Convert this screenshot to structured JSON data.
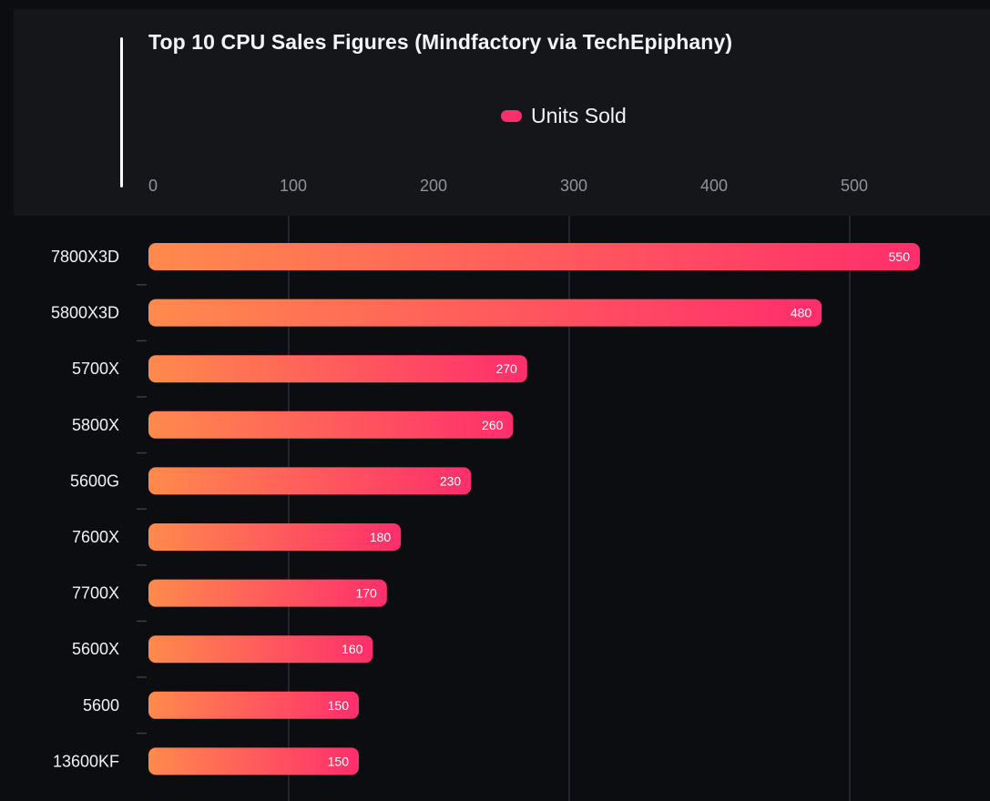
{
  "chart_data": {
    "type": "bar",
    "orientation": "horizontal",
    "title": "Top 10 CPU Sales Figures (Mindfactory via TechEpiphany)",
    "legend": {
      "position": "top-center",
      "entries": [
        "Units Sold"
      ]
    },
    "categories": [
      "7800X3D",
      "5800X3D",
      "5700X",
      "5800X",
      "5600G",
      "7600X",
      "7700X",
      "5600X",
      "5600",
      "13600KF"
    ],
    "series": [
      {
        "name": "Units Sold",
        "values": [
          550,
          480,
          270,
          260,
          230,
          180,
          170,
          160,
          150,
          150
        ]
      }
    ],
    "xlim": [
      0,
      600
    ],
    "xticks": [
      0,
      100,
      200,
      300,
      400,
      500
    ],
    "xlabel": "",
    "ylabel": "",
    "grid": true,
    "colors": {
      "bar_start": "#ff8a4c",
      "bar_end": "#ff2e6c",
      "legend_swatch": "#ff2e6c",
      "grid": "#22252b",
      "tick_text": "#8f949c",
      "category_text": "#f1f2f4"
    }
  }
}
